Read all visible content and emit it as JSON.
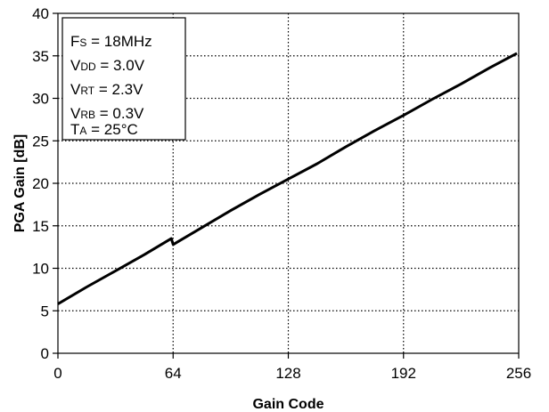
{
  "chart_data": {
    "type": "line",
    "xlabel": "Gain Code",
    "ylabel": "PGA Gain [dB]",
    "xlim": [
      0,
      256
    ],
    "ylim": [
      0,
      40
    ],
    "xticks": [
      0,
      64,
      128,
      192,
      256
    ],
    "yticks": [
      0,
      5,
      10,
      15,
      20,
      25,
      30,
      35,
      40
    ],
    "grid": "dotted",
    "annotation": [
      {
        "main": "F",
        "sub": "S",
        "rest": " = 18MHz"
      },
      {
        "main": "V",
        "sub": "DD",
        "rest": " = 3.0V"
      },
      {
        "main": "V",
        "sub": "RT",
        "rest": " = 2.3V"
      },
      {
        "main": "V",
        "sub": "RB",
        "rest": " = 0.3V"
      },
      {
        "main": "T",
        "sub": "A",
        "rest": " = 25°C"
      }
    ],
    "series": [
      {
        "x": [
          0,
          16,
          32,
          48,
          63,
          64,
          80,
          96,
          112,
          128,
          144,
          160,
          176,
          192,
          208,
          224,
          240,
          255
        ],
        "y": [
          5.8,
          7.8,
          9.7,
          11.6,
          13.5,
          12.8,
          14.8,
          16.8,
          18.7,
          20.5,
          22.3,
          24.3,
          26.2,
          28.0,
          29.9,
          31.7,
          33.6,
          35.3
        ]
      }
    ]
  }
}
